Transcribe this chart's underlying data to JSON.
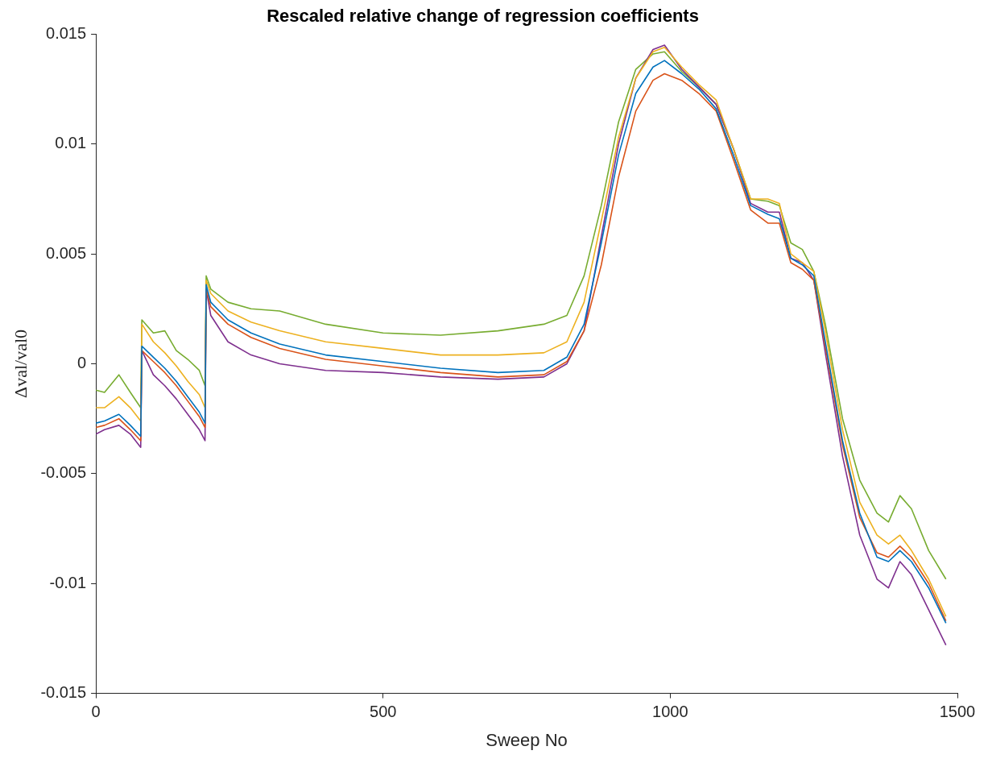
{
  "chart_data": {
    "type": "line",
    "title": "Rescaled relative change of regression coefficients",
    "xlabel": "Sweep No",
    "ylabel": "Δval/val0",
    "x": [
      0,
      15,
      40,
      60,
      78,
      80,
      100,
      120,
      140,
      160,
      180,
      190,
      192,
      200,
      230,
      270,
      320,
      400,
      500,
      600,
      700,
      780,
      820,
      850,
      880,
      910,
      940,
      970,
      990,
      1020,
      1050,
      1080,
      1110,
      1140,
      1170,
      1190,
      1210,
      1230,
      1250,
      1270,
      1300,
      1330,
      1360,
      1380,
      1400,
      1420,
      1450,
      1480
    ],
    "series": [
      {
        "color": "#0072bd",
        "values": [
          -0.0027,
          -0.0026,
          -0.0023,
          -0.0028,
          -0.0033,
          0.0008,
          0.0003,
          -0.0002,
          -0.0008,
          -0.0015,
          -0.0022,
          -0.0027,
          0.0036,
          0.0028,
          0.002,
          0.0014,
          0.0009,
          0.0004,
          0.0001,
          -0.0002,
          -0.0004,
          -0.0003,
          0.0003,
          0.0018,
          0.0055,
          0.0095,
          0.0123,
          0.0135,
          0.0138,
          0.0132,
          0.0125,
          0.0116,
          0.0095,
          0.0072,
          0.0068,
          0.0066,
          0.0048,
          0.0045,
          0.004,
          0.001,
          -0.0035,
          -0.0068,
          -0.0088,
          -0.009,
          -0.0085,
          -0.009,
          -0.0102,
          -0.0118
        ]
      },
      {
        "color": "#d95319",
        "values": [
          -0.0029,
          -0.0028,
          -0.0025,
          -0.003,
          -0.0035,
          0.0006,
          0.0001,
          -0.0004,
          -0.001,
          -0.0017,
          -0.0024,
          -0.0029,
          0.0034,
          0.0026,
          0.0018,
          0.0012,
          0.0007,
          0.0002,
          -0.0001,
          -0.0004,
          -0.0006,
          -0.0005,
          0.0001,
          0.0015,
          0.0045,
          0.0085,
          0.0115,
          0.0129,
          0.0132,
          0.0129,
          0.0123,
          0.0115,
          0.0093,
          0.007,
          0.0064,
          0.0064,
          0.0046,
          0.0043,
          0.0038,
          0.0008,
          -0.0037,
          -0.007,
          -0.0086,
          -0.0088,
          -0.0083,
          -0.0088,
          -0.01,
          -0.0117
        ]
      },
      {
        "color": "#edb120",
        "values": [
          -0.002,
          -0.002,
          -0.0015,
          -0.002,
          -0.0026,
          0.0018,
          0.001,
          0.0005,
          -0.0001,
          -0.0008,
          -0.0014,
          -0.002,
          0.0038,
          0.0032,
          0.0024,
          0.0019,
          0.0015,
          0.001,
          0.0007,
          0.0004,
          0.0004,
          0.0005,
          0.001,
          0.0028,
          0.0065,
          0.0103,
          0.013,
          0.0142,
          0.0144,
          0.0135,
          0.0127,
          0.012,
          0.0098,
          0.0075,
          0.0075,
          0.0073,
          0.005,
          0.0046,
          0.0042,
          0.0015,
          -0.003,
          -0.0063,
          -0.0078,
          -0.0082,
          -0.0078,
          -0.0085,
          -0.0098,
          -0.0115
        ]
      },
      {
        "color": "#7e2f8e",
        "values": [
          -0.0032,
          -0.003,
          -0.0028,
          -0.0032,
          -0.0038,
          0.0006,
          -0.0005,
          -0.001,
          -0.0016,
          -0.0023,
          -0.003,
          -0.0035,
          0.0034,
          0.0022,
          0.001,
          0.0004,
          0,
          -0.0003,
          -0.0004,
          -0.0006,
          -0.0007,
          -0.0006,
          0,
          0.0015,
          0.0058,
          0.01,
          0.013,
          0.0143,
          0.0145,
          0.0134,
          0.0126,
          0.0118,
          0.0098,
          0.0073,
          0.0069,
          0.0069,
          0.0048,
          0.0046,
          0.0038,
          0.0005,
          -0.0042,
          -0.0078,
          -0.0098,
          -0.0102,
          -0.009,
          -0.0096,
          -0.0112,
          -0.0128
        ]
      },
      {
        "color": "#77ac30",
        "values": [
          -0.0012,
          -0.0013,
          -0.0005,
          -0.0013,
          -0.002,
          0.002,
          0.0014,
          0.0015,
          0.0006,
          0.0002,
          -0.0003,
          -0.001,
          0.004,
          0.0034,
          0.0028,
          0.0025,
          0.0024,
          0.0018,
          0.0014,
          0.0013,
          0.0015,
          0.0018,
          0.0022,
          0.004,
          0.0072,
          0.011,
          0.0134,
          0.0141,
          0.0142,
          0.0133,
          0.0126,
          0.0118,
          0.0098,
          0.0075,
          0.0074,
          0.0072,
          0.0055,
          0.0052,
          0.0042,
          0.0018,
          -0.0025,
          -0.0053,
          -0.0068,
          -0.0072,
          -0.006,
          -0.0066,
          -0.0085,
          -0.0098
        ]
      }
    ],
    "xlim": [
      0,
      1500
    ],
    "xticks": [
      0,
      500,
      1000,
      1500
    ],
    "ylim": [
      -0.015,
      0.015
    ],
    "yticks": [
      -0.015,
      -0.01,
      -0.005,
      0,
      0.005,
      0.01,
      0.015
    ],
    "grid": false
  }
}
